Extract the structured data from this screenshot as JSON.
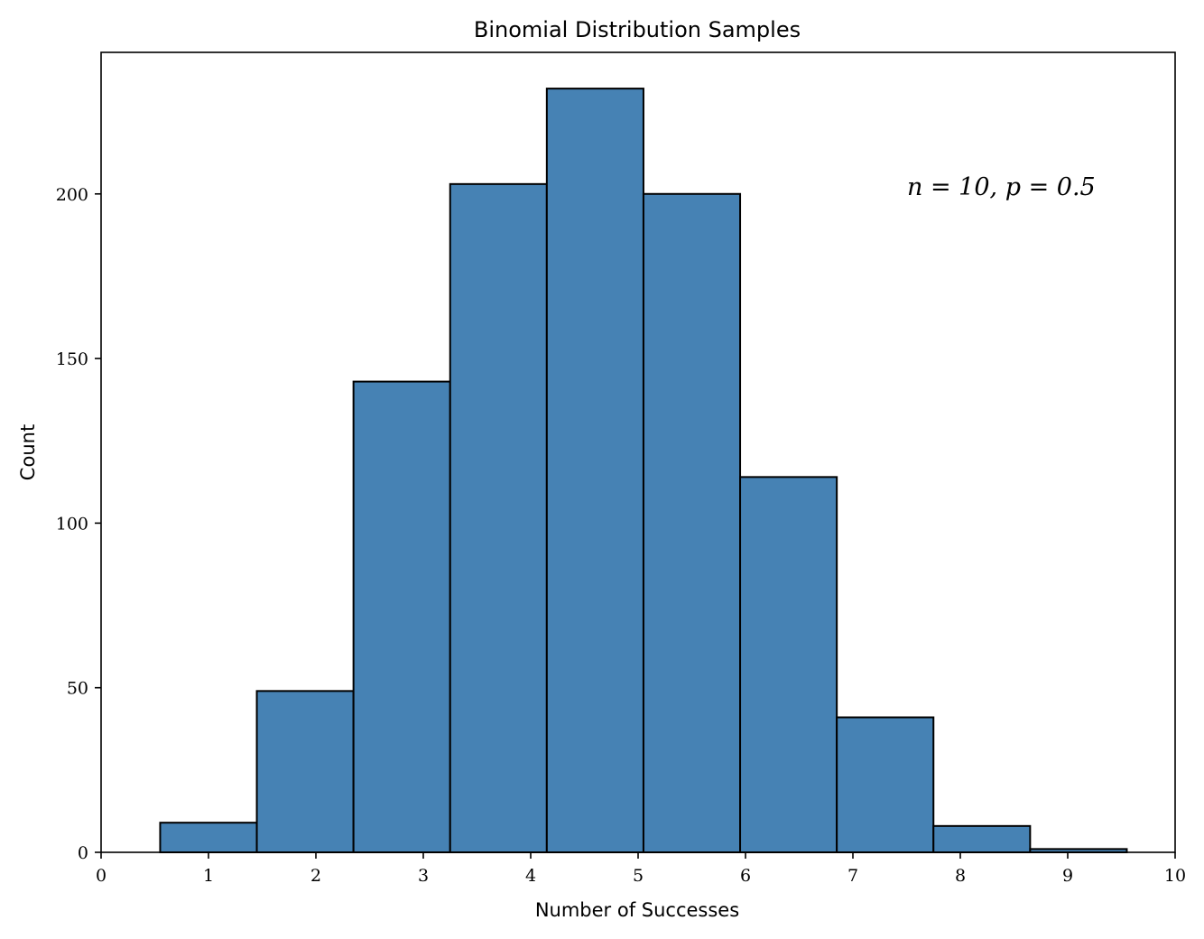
{
  "chart_data": {
    "type": "bar",
    "title": "Binomial Distribution Samples",
    "xlabel": "Number of Successes",
    "ylabel": "Count",
    "xlim": [
      0,
      10
    ],
    "ylim": [
      0,
      243
    ],
    "x_ticks": [
      0,
      1,
      2,
      3,
      4,
      5,
      6,
      7,
      8,
      9,
      10
    ],
    "y_ticks": [
      0,
      50,
      100,
      150,
      200
    ],
    "annotation": "n = 10, p = 0.5",
    "bar_color": "#4682b4",
    "edge_color": "#000000",
    "bins": [
      {
        "x0": 0.55,
        "x1": 1.45,
        "count": 9
      },
      {
        "x0": 1.45,
        "x1": 2.35,
        "count": 49
      },
      {
        "x0": 2.35,
        "x1": 3.25,
        "count": 143
      },
      {
        "x0": 3.25,
        "x1": 4.15,
        "count": 203
      },
      {
        "x0": 4.15,
        "x1": 5.05,
        "count": 232
      },
      {
        "x0": 5.05,
        "x1": 5.95,
        "count": 200
      },
      {
        "x0": 5.95,
        "x1": 6.85,
        "count": 114
      },
      {
        "x0": 6.85,
        "x1": 7.75,
        "count": 41
      },
      {
        "x0": 7.75,
        "x1": 8.65,
        "count": 8
      },
      {
        "x0": 8.65,
        "x1": 9.55,
        "count": 1
      }
    ]
  }
}
